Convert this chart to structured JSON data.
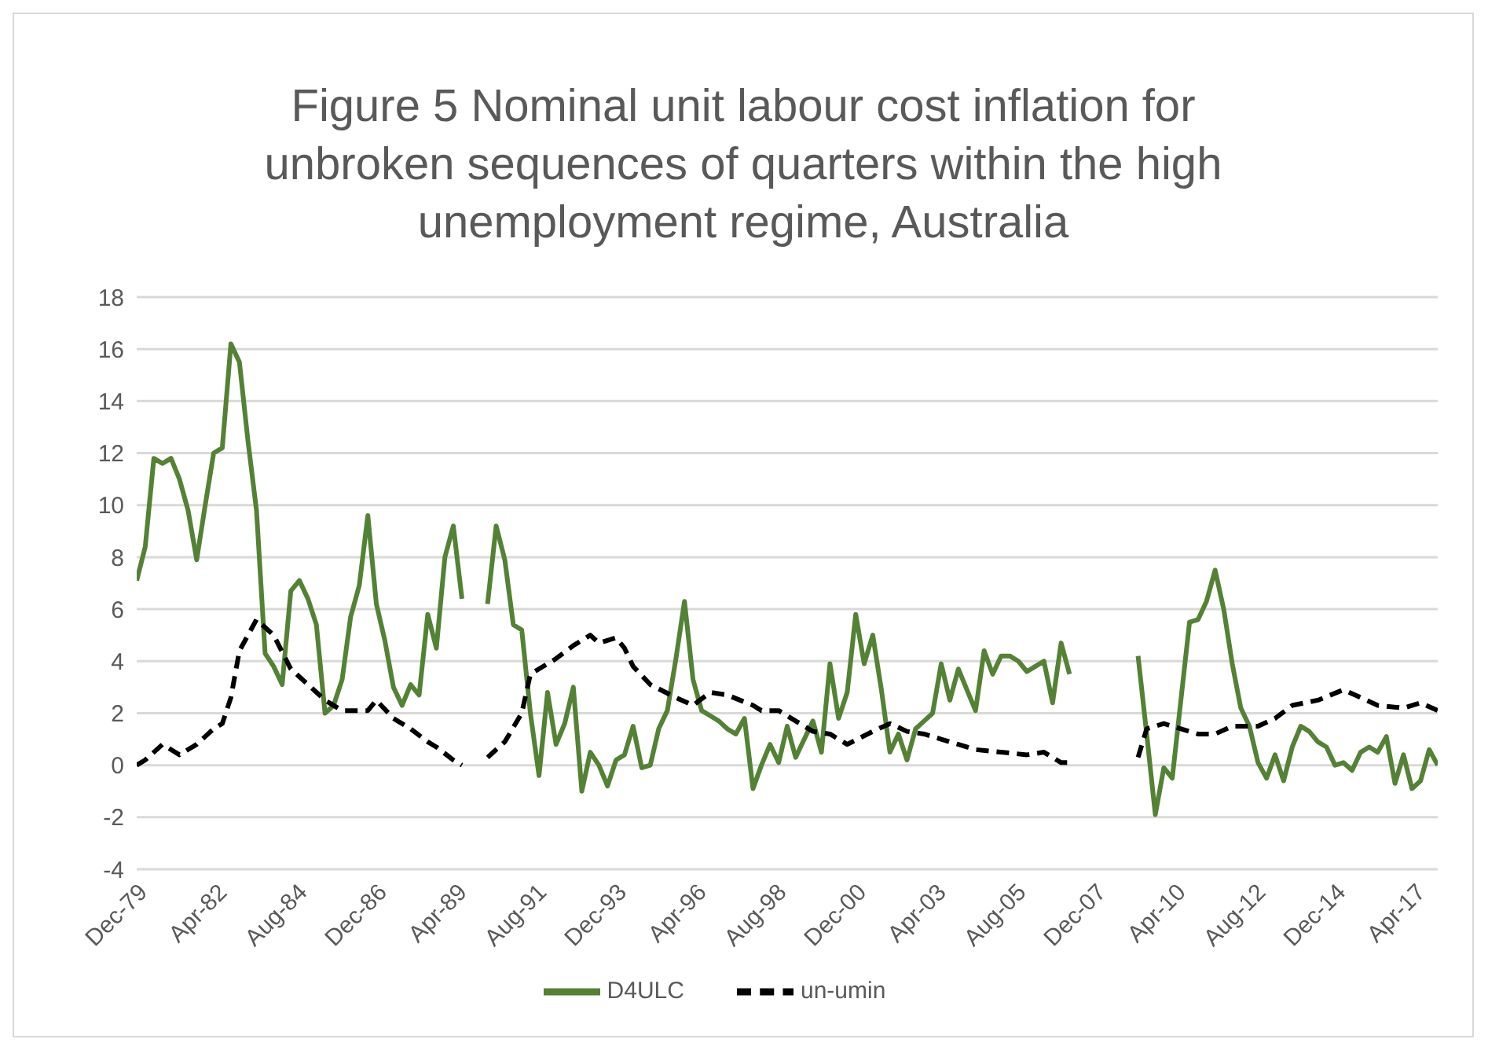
{
  "chart_data": {
    "type": "line",
    "title": "Figure 5 Nominal unit labour cost inflation for unbroken sequences of quarters within the high unemployment regime, Australia",
    "x": [
      "1979-12",
      "1980-03",
      "1980-06",
      "1980-09",
      "1980-12",
      "1981-03",
      "1981-06",
      "1981-09",
      "1981-12",
      "1982-03",
      "1982-06",
      "1982-09",
      "1982-12",
      "1983-03",
      "1983-06",
      "1983-09",
      "1983-12",
      "1984-03",
      "1984-06",
      "1984-09",
      "1984-12",
      "1985-03",
      "1985-06",
      "1985-09",
      "1985-12",
      "1986-03",
      "1986-06",
      "1986-09",
      "1986-12",
      "1987-03",
      "1987-06",
      "1987-09",
      "1987-12",
      "1988-03",
      "1988-06",
      "1988-09",
      "1988-12",
      "1989-03",
      "1989-06",
      "1989-09",
      "1989-12",
      "1990-03",
      "1990-06",
      "1990-09",
      "1990-12",
      "1991-03",
      "1991-06",
      "1991-09",
      "1991-12",
      "1992-03",
      "1992-06",
      "1992-09",
      "1992-12",
      "1993-03",
      "1993-06",
      "1993-09",
      "1993-12",
      "1994-03",
      "1994-06",
      "1994-09",
      "1994-12",
      "1995-03",
      "1995-06",
      "1995-09",
      "1995-12",
      "1996-03",
      "1996-06",
      "1996-09",
      "1996-12",
      "1997-03",
      "1997-06",
      "1997-09",
      "1997-12",
      "1998-03",
      "1998-06",
      "1998-09",
      "1998-12",
      "1999-03",
      "1999-06",
      "1999-09",
      "1999-12",
      "2000-03",
      "2000-06",
      "2000-09",
      "2000-12",
      "2001-03",
      "2001-06",
      "2001-09",
      "2001-12",
      "2002-03",
      "2002-06",
      "2002-09",
      "2002-12",
      "2003-03",
      "2003-06",
      "2003-09",
      "2003-12",
      "2004-03",
      "2004-06",
      "2004-09",
      "2004-12",
      "2005-03",
      "2005-06",
      "2005-09",
      "2005-12",
      "2006-03",
      "2006-06",
      "2006-09",
      "2006-12",
      "2007-03",
      "2007-06",
      "2007-09",
      "2007-12",
      "2008-03",
      "2008-06",
      "2008-09",
      "2008-12",
      "2009-03",
      "2009-06",
      "2009-09",
      "2009-12",
      "2010-03",
      "2010-06",
      "2010-09",
      "2010-12",
      "2011-03",
      "2011-06",
      "2011-09",
      "2011-12",
      "2012-03",
      "2012-06",
      "2012-09",
      "2012-12",
      "2013-03",
      "2013-06",
      "2013-09",
      "2013-12",
      "2014-03",
      "2014-06",
      "2014-09",
      "2014-12",
      "2015-03",
      "2015-06",
      "2015-09",
      "2015-12",
      "2016-03",
      "2016-06",
      "2016-09",
      "2016-12",
      "2017-03",
      "2017-06",
      "2017-09",
      "2017-12"
    ],
    "series": [
      {
        "name": "D4ULC",
        "color": "#548235",
        "line_style": "solid",
        "values": [
          7.1,
          8.4,
          11.8,
          11.6,
          11.8,
          11.0,
          9.8,
          7.9,
          10.0,
          12.0,
          12.2,
          16.2,
          15.5,
          12.5,
          9.8,
          4.3,
          3.8,
          3.1,
          6.7,
          7.1,
          6.4,
          5.4,
          2.0,
          2.3,
          3.3,
          5.7,
          6.9,
          9.6,
          6.2,
          4.8,
          3.0,
          2.3,
          3.1,
          2.7,
          5.8,
          4.5,
          8.0,
          9.2,
          6.4,
          null,
          null,
          6.2,
          9.2,
          7.9,
          5.4,
          5.2,
          2.0,
          -0.4,
          2.8,
          0.8,
          1.6,
          3.0,
          -1.0,
          0.5,
          0.0,
          -0.8,
          0.2,
          0.4,
          1.5,
          -0.1,
          0.0,
          1.4,
          2.1,
          4.1,
          6.3,
          3.3,
          2.1,
          1.9,
          1.7,
          1.4,
          1.2,
          1.8,
          -0.9,
          0.0,
          0.8,
          0.1,
          1.5,
          0.3,
          1.0,
          1.7,
          0.5,
          3.9,
          1.8,
          2.8,
          5.8,
          3.9,
          5.0,
          2.9,
          0.5,
          1.2,
          0.2,
          1.4,
          1.7,
          2.0,
          3.9,
          2.5,
          3.7,
          2.9,
          2.1,
          4.4,
          3.5,
          4.2,
          4.2,
          4.0,
          3.6,
          3.8,
          4.0,
          2.4,
          4.7,
          3.5,
          null,
          null,
          null,
          null,
          null,
          null,
          null,
          4.2,
          1.2,
          -1.9,
          -0.1,
          -0.5,
          2.5,
          5.5,
          5.6,
          6.3,
          7.5,
          6.0,
          3.9,
          2.2,
          1.5,
          0.1,
          -0.5,
          0.4,
          -0.6,
          0.7,
          1.5,
          1.3,
          0.9,
          0.7,
          0.0,
          0.1,
          -0.2,
          0.5,
          0.7,
          0.5,
          1.1,
          -0.7,
          0.4,
          -0.9,
          -0.6,
          0.6,
          0.0
        ]
      },
      {
        "name": "un-umin",
        "color": "#000000",
        "line_style": "dashed",
        "x": [
          "1979-12",
          "1980-03",
          "1980-09",
          "1980-12",
          "1981-03",
          "1981-09",
          "1982-03",
          "1982-06",
          "1982-09",
          "1982-12",
          "1983-06",
          "1983-12",
          "1984-06",
          "1984-12",
          "1985-06",
          "1985-12",
          "1986-09",
          "1986-12",
          "1987-06",
          "1987-12",
          "1988-06",
          "1988-09",
          "1989-03",
          "1989-06",
          "1989-09",
          "1990-03",
          "1990-09",
          "1991-03",
          "1991-06",
          "1992-03",
          "1992-09",
          "1993-03",
          "1993-06",
          "1993-12",
          "1994-03",
          "1994-06",
          "1994-12",
          "1995-09",
          "1996-03",
          "1996-09",
          "1997-03",
          "1997-12",
          "1998-03",
          "1998-09",
          "1999-03",
          "1999-09",
          "2000-03",
          "2000-09",
          "2001-06",
          "2001-12",
          "2002-06",
          "2002-12",
          "2003-06",
          "2003-12",
          "2004-06",
          "2005-03",
          "2005-12",
          "2006-06",
          "2006-12",
          "2007-03",
          "2007-06",
          "2009-03",
          "2009-06",
          "2009-12",
          "2010-06",
          "2010-12",
          "2011-06",
          "2011-12",
          "2012-09",
          "2013-03",
          "2013-09",
          "2014-06",
          "2015-03",
          "2015-09",
          "2016-03",
          "2016-12",
          "2017-06",
          "2017-12"
        ],
        "values": [
          0.0,
          0.2,
          0.8,
          0.6,
          0.4,
          0.8,
          1.4,
          1.6,
          2.6,
          4.4,
          5.6,
          5.0,
          3.7,
          3.1,
          2.5,
          2.1,
          2.1,
          2.5,
          1.8,
          1.4,
          0.9,
          0.7,
          0.2,
          0.0,
          null,
          0.3,
          0.9,
          2.0,
          3.5,
          4.1,
          4.6,
          5.0,
          4.7,
          4.9,
          4.5,
          3.8,
          3.1,
          2.6,
          2.3,
          2.8,
          2.7,
          2.3,
          2.1,
          2.1,
          1.7,
          1.3,
          1.2,
          0.8,
          1.3,
          1.6,
          1.3,
          1.2,
          1.0,
          0.8,
          0.6,
          0.5,
          0.4,
          0.5,
          0.1,
          0.1,
          null,
          0.3,
          1.4,
          1.6,
          1.4,
          1.2,
          1.2,
          1.5,
          1.5,
          1.8,
          2.3,
          2.5,
          2.9,
          2.6,
          2.3,
          2.2,
          2.4,
          2.1
        ]
      }
    ],
    "xlim": [
      "1979-12",
      "2017-12"
    ],
    "xticks": [
      {
        "value": "1979-12",
        "label": "Dec-79"
      },
      {
        "value": "1982-04",
        "label": "Apr-82"
      },
      {
        "value": "1984-08",
        "label": "Aug-84"
      },
      {
        "value": "1986-12",
        "label": "Dec-86"
      },
      {
        "value": "1989-04",
        "label": "Apr-89"
      },
      {
        "value": "1991-08",
        "label": "Aug-91"
      },
      {
        "value": "1993-12",
        "label": "Dec-93"
      },
      {
        "value": "1996-04",
        "label": "Apr-96"
      },
      {
        "value": "1998-08",
        "label": "Aug-98"
      },
      {
        "value": "2000-12",
        "label": "Dec-00"
      },
      {
        "value": "2003-04",
        "label": "Apr-03"
      },
      {
        "value": "2005-08",
        "label": "Aug-05"
      },
      {
        "value": "2007-12",
        "label": "Dec-07"
      },
      {
        "value": "2010-04",
        "label": "Apr-10"
      },
      {
        "value": "2012-08",
        "label": "Aug-12"
      },
      {
        "value": "2014-12",
        "label": "Dec-14"
      },
      {
        "value": "2017-04",
        "label": "Apr-17"
      }
    ],
    "ylim": [
      -4,
      18
    ],
    "yticks": [
      -4,
      -2,
      0,
      2,
      4,
      6,
      8,
      10,
      12,
      14,
      16,
      18
    ],
    "grid": "y",
    "legend": "bottom"
  }
}
